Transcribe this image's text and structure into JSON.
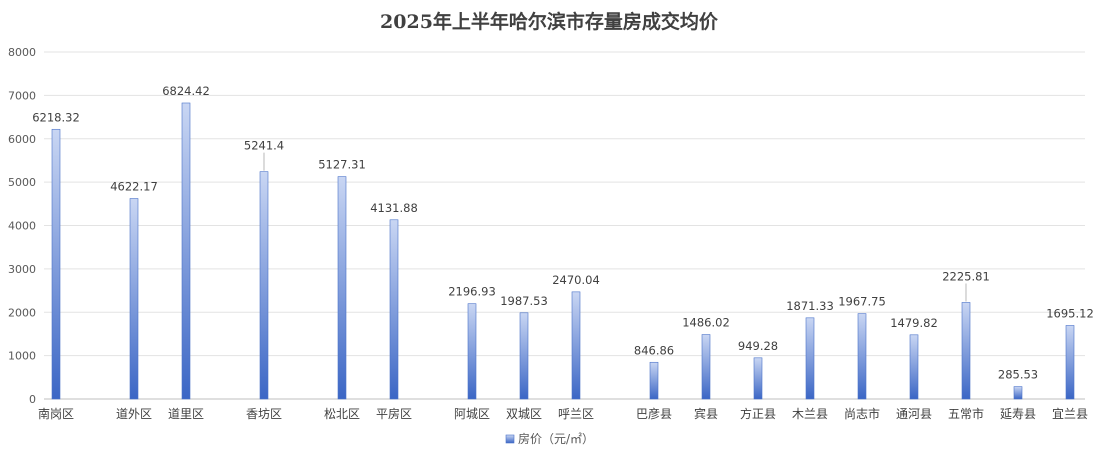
{
  "chart_data": {
    "type": "bar",
    "title": "2025年上半年哈尔滨市存量房成交均价",
    "xlabel": "",
    "ylabel": "",
    "ylim": [
      0,
      8000
    ],
    "yticks": [
      0,
      1000,
      2000,
      3000,
      4000,
      5000,
      6000,
      7000,
      8000
    ],
    "grid": true,
    "legend_position": "bottom",
    "categories": [
      "南岗区",
      "道外区",
      "道里区",
      "香坊区",
      "松北区",
      "平房区",
      "阿城区",
      "双城区",
      "呼兰区",
      "巴彦县",
      "宾县",
      "方正县",
      "木兰县",
      "尚志市",
      "通河县",
      "五常市",
      "延寿县",
      "宜兰县"
    ],
    "series": [
      {
        "name": "房价（元/㎡）",
        "values": [
          6218.32,
          4622.17,
          6824.42,
          5241.4,
          5127.31,
          4131.88,
          2196.93,
          1987.53,
          2470.04,
          846.86,
          1486.02,
          949.28,
          1871.33,
          1967.75,
          1479.82,
          2225.81,
          285.53,
          1695.12
        ],
        "labels": [
          "6218.32",
          "4622.17",
          "6824.42",
          "5241.4",
          "5127.31",
          "4131.88",
          "2196.93",
          "1987.53",
          "2470.04",
          "846.86",
          "1486.02",
          "949.28",
          "1871.33",
          "1967.75",
          "1479.82",
          "2225.81",
          "285.53",
          "1695.12"
        ]
      }
    ],
    "colors": {
      "bar_top": "#c9d6f3",
      "bar_bottom": "#3b66c5",
      "bar_stroke": "#4a72c9",
      "grid": "#e3e3e3"
    }
  }
}
